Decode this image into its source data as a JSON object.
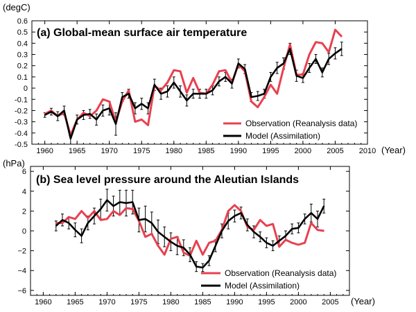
{
  "chart_data": [
    {
      "type": "line",
      "title": "(a) Global-mean surface air temperature",
      "ylabel": "(degC)",
      "xlabel": "(Year)",
      "xlim": [
        1958,
        2010
      ],
      "ylim": [
        -0.5,
        0.6
      ],
      "xticks": [
        1960,
        1965,
        1970,
        1975,
        1980,
        1985,
        1990,
        1995,
        2000,
        2005,
        2010
      ],
      "yticks": [
        -0.5,
        -0.4,
        -0.3,
        -0.2,
        -0.1,
        0,
        0.1,
        0.2,
        0.3,
        0.4,
        0.5,
        0.6
      ],
      "ytick_labels": [
        "-0.5",
        "-0.4",
        "-0.3",
        "-0.2",
        "-0.1",
        "0",
        "0.1",
        "0.2",
        "0.3",
        "0.4",
        "0.5",
        "0.6"
      ],
      "legend_position": "bottom-right",
      "x": [
        1960,
        1961,
        1962,
        1963,
        1964,
        1965,
        1966,
        1967,
        1968,
        1969,
        1970,
        1971,
        1972,
        1973,
        1974,
        1975,
        1976,
        1977,
        1978,
        1979,
        1980,
        1981,
        1982,
        1983,
        1984,
        1985,
        1986,
        1987,
        1988,
        1989,
        1990,
        1991,
        1992,
        1993,
        1994,
        1995,
        1996,
        1997,
        1998,
        1999,
        2000,
        2001,
        2002,
        2003,
        2004,
        2005,
        2006
      ],
      "series": [
        {
          "name": "Observation (Reanalysis data)",
          "color": "#e8404f",
          "values": [
            -0.23,
            -0.2,
            -0.25,
            -0.22,
            -0.42,
            -0.28,
            -0.22,
            -0.25,
            -0.2,
            -0.1,
            -0.12,
            -0.3,
            -0.12,
            -0.02,
            -0.3,
            -0.28,
            -0.33,
            0.02,
            -0.02,
            0.05,
            0.16,
            0.15,
            -0.04,
            0.09,
            -0.04,
            -0.05,
            0.03,
            0.15,
            0.16,
            0.05,
            0.21,
            0.15,
            -0.12,
            -0.17,
            -0.08,
            0.03,
            -0.05,
            0.18,
            0.39,
            0.12,
            0.12,
            0.3,
            0.41,
            0.4,
            0.32,
            0.52,
            0.46
          ]
        },
        {
          "name": "Model (Assimilation)",
          "color": "#000000",
          "values": [
            -0.24,
            -0.21,
            -0.25,
            -0.2,
            -0.45,
            -0.28,
            -0.24,
            -0.23,
            -0.28,
            -0.2,
            -0.18,
            -0.32,
            -0.08,
            -0.05,
            -0.18,
            -0.14,
            -0.18,
            0.03,
            -0.05,
            -0.03,
            0.05,
            -0.03,
            -0.11,
            -0.05,
            -0.05,
            -0.05,
            -0.02,
            0.06,
            0.1,
            0.04,
            0.22,
            0.17,
            -0.08,
            -0.07,
            -0.05,
            0.1,
            0.18,
            0.22,
            0.35,
            0.11,
            0.09,
            0.18,
            0.26,
            0.14,
            0.26,
            0.31,
            0.35
          ]
        }
      ],
      "model_errors": [
        0.02,
        0.03,
        0.04,
        0.04,
        0.05,
        0.04,
        0.04,
        0.04,
        0.05,
        0.05,
        0.06,
        0.1,
        0.04,
        0.04,
        0.05,
        0.05,
        0.05,
        0.05,
        0.05,
        0.05,
        0.05,
        0.05,
        0.05,
        0.04,
        0.04,
        0.04,
        0.04,
        0.04,
        0.04,
        0.04,
        0.04,
        0.04,
        0.04,
        0.04,
        0.04,
        0.04,
        0.05,
        0.05,
        0.05,
        0.05,
        0.04,
        0.04,
        0.04,
        0.04,
        0.05,
        0.05,
        0.06
      ]
    },
    {
      "type": "line",
      "title": "(b) Sea level pressure around the Aleutian Islands",
      "ylabel": "(hPa)",
      "xlabel": "(Year)",
      "xlim": [
        1958,
        2008
      ],
      "ylim": [
        -6.5,
        6.5
      ],
      "xticks": [
        1960,
        1965,
        1970,
        1975,
        1980,
        1985,
        1990,
        1995,
        2000,
        2005
      ],
      "yticks": [
        -6,
        -4,
        -2,
        0,
        2,
        4,
        6
      ],
      "ytick_labels": [
        "−6",
        "−4",
        "−2",
        "0",
        "2",
        "4",
        "6"
      ],
      "legend_position": "bottom-right",
      "x": [
        1962,
        1963,
        1964,
        1965,
        1966,
        1967,
        1968,
        1969,
        1970,
        1971,
        1972,
        1973,
        1974,
        1975,
        1976,
        1977,
        1978,
        1979,
        1980,
        1981,
        1982,
        1983,
        1984,
        1985,
        1986,
        1987,
        1988,
        1989,
        1990,
        1991,
        1992,
        1993,
        1994,
        1995,
        1996,
        1997,
        1998,
        1999,
        2000,
        2001,
        2002,
        2003,
        2004
      ],
      "series": [
        {
          "name": "Observation (Reanalysis data)",
          "color": "#e8404f",
          "values": [
            0.8,
            0.8,
            1.4,
            1.2,
            2.0,
            1.3,
            2.0,
            1.1,
            1.2,
            2.0,
            1.6,
            2.3,
            2.2,
            1.0,
            -0.6,
            -0.3,
            -1.5,
            -2.4,
            -0.8,
            -0.6,
            -2.2,
            -2.5,
            -1.0,
            -2.4,
            -1.2,
            -1.0,
            0.1,
            2.0,
            2.6,
            2.0,
            0.4,
            0.1,
            1.1,
            0.5,
            0.7,
            -1.6,
            -0.9,
            -1.2,
            -1.4,
            -1.2,
            0.8,
            0.1,
            0.0
          ]
        },
        {
          "name": "Model (Assimilation)",
          "color": "#000000",
          "values": [
            0.5,
            1.1,
            0.8,
            0.1,
            -0.5,
            0.8,
            1.5,
            2.2,
            3.1,
            2.5,
            2.9,
            2.8,
            2.9,
            1.1,
            1.2,
            0.8,
            -0.1,
            -0.6,
            -1.1,
            -1.5,
            -1.7,
            -2.4,
            -3.6,
            -3.7,
            -3.0,
            -1.5,
            0.0,
            1.0,
            1.5,
            1.8,
            0.6,
            -0.1,
            -0.6,
            -1.2,
            -1.5,
            -1.0,
            -0.5,
            0.2,
            0.3,
            1.2,
            1.8,
            1.2,
            2.5
          ]
        }
      ],
      "model_errors": [
        0.5,
        0.6,
        0.6,
        0.7,
        0.7,
        0.7,
        0.8,
        1.0,
        1.1,
        1.0,
        1.2,
        1.3,
        1.2,
        1.2,
        1.3,
        1.1,
        1.2,
        1.0,
        0.9,
        0.9,
        0.8,
        0.7,
        0.5,
        0.4,
        0.5,
        0.6,
        0.7,
        0.8,
        0.6,
        0.6,
        0.6,
        0.6,
        0.5,
        0.5,
        0.5,
        0.5,
        0.5,
        0.5,
        0.5,
        0.5,
        0.9,
        0.8,
        0.7
      ]
    }
  ]
}
